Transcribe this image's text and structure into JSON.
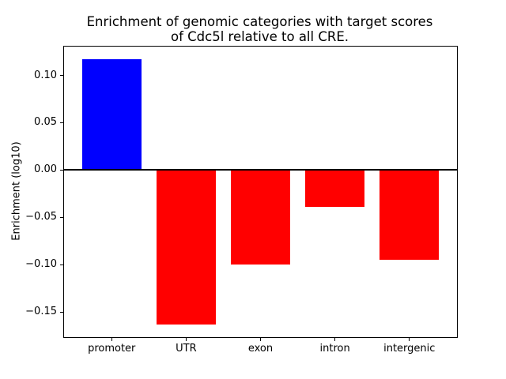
{
  "figure": {
    "title_line1": "Enrichment of genomic categories with target scores",
    "title_line2": "of Cdc5l relative to all CRE."
  },
  "chart_data": {
    "type": "bar",
    "title": "Enrichment of genomic categories with target scores\nof Cdc5l relative to all CRE.",
    "xlabel": "",
    "ylabel": "Enrichment (log10)",
    "categories": [
      "promoter",
      "UTR",
      "exon",
      "intron",
      "intergenic"
    ],
    "values": [
      0.117,
      -0.163,
      -0.1,
      -0.039,
      -0.095
    ],
    "bar_colors": [
      "#0000ff",
      "#ff0000",
      "#ff0000",
      "#ff0000",
      "#ff0000"
    ],
    "positive_color": "#0000ff",
    "negative_color": "#ff0000",
    "bar_width": 0.8,
    "xlim": [
      -0.64,
      4.64
    ],
    "ylim": [
      -0.1765,
      0.1305
    ],
    "yticks": [
      0.1,
      0.05,
      0.0,
      -0.05,
      -0.1,
      -0.15
    ],
    "ytick_labels": [
      "0.10",
      "0.05",
      "0.00",
      "−0.05",
      "−0.10",
      "−0.15"
    ],
    "grid": false,
    "legend": null,
    "zero_line": {
      "y": 0,
      "color": "#000000",
      "linewidth": 2
    },
    "frame_color": "#000000",
    "background_color": "#ffffff"
  }
}
